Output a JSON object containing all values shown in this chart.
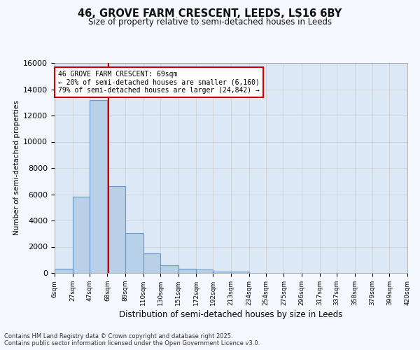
{
  "title_line1": "46, GROVE FARM CRESCENT, LEEDS, LS16 6BY",
  "title_line2": "Size of property relative to semi-detached houses in Leeds",
  "xlabel": "Distribution of semi-detached houses by size in Leeds",
  "ylabel": "Number of semi-detached properties",
  "bins": [
    6,
    27,
    47,
    68,
    89,
    110,
    130,
    151,
    172,
    192,
    213,
    234,
    254,
    275,
    296,
    317,
    337,
    358,
    379,
    399,
    420
  ],
  "bin_labels": [
    "6sqm",
    "27sqm",
    "47sqm",
    "68sqm",
    "89sqm",
    "110sqm",
    "130sqm",
    "151sqm",
    "172sqm",
    "192sqm",
    "213sqm",
    "234sqm",
    "254sqm",
    "275sqm",
    "296sqm",
    "317sqm",
    "337sqm",
    "358sqm",
    "379sqm",
    "399sqm",
    "420sqm"
  ],
  "counts": [
    300,
    5800,
    13200,
    6600,
    3050,
    1520,
    600,
    330,
    260,
    130,
    100,
    0,
    0,
    0,
    0,
    0,
    0,
    0,
    0,
    0
  ],
  "bar_color": "#b8d0e8",
  "bar_edge_color": "#6699cc",
  "property_size": 69,
  "property_label": "46 GROVE FARM CRESCENT: 69sqm",
  "pct_smaller": 20,
  "count_smaller": 6160,
  "pct_larger": 79,
  "count_larger": 24842,
  "annotation_box_color": "#ffffff",
  "annotation_border_color": "#cc0000",
  "vline_color": "#cc0000",
  "ylim": [
    0,
    16000
  ],
  "yticks": [
    0,
    2000,
    4000,
    6000,
    8000,
    10000,
    12000,
    14000,
    16000
  ],
  "grid_color": "#cccccc",
  "bg_color": "#dce8f5",
  "fig_bg_color": "#f5f8ff",
  "footer_line1": "Contains HM Land Registry data © Crown copyright and database right 2025.",
  "footer_line2": "Contains public sector information licensed under the Open Government Licence v3.0."
}
